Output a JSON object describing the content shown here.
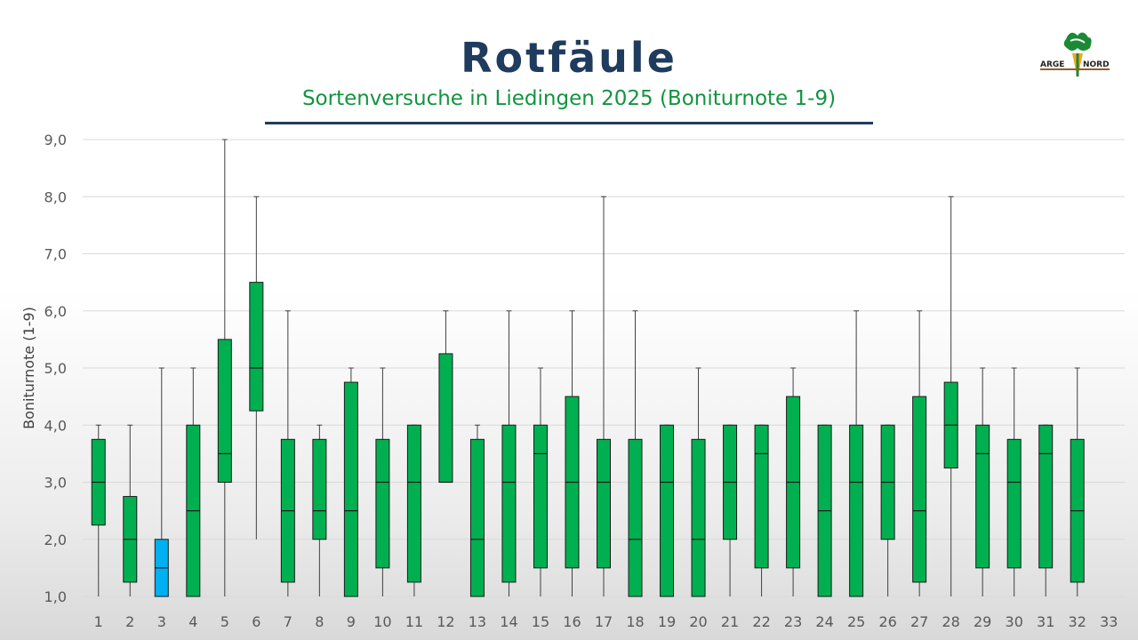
{
  "header": {
    "title": "Rotfäule",
    "subtitle": "Sortenversuche in Liedingen 2025 (Boniturnote 1-9)"
  },
  "logo": {
    "left_text": "ARGE",
    "right_text": "NORD"
  },
  "colors": {
    "box_default": "#00b050",
    "box_highlight": "#00b0f0",
    "title": "#1f3c5e",
    "subtitle": "#12943f"
  },
  "chart_data": {
    "type": "boxplot",
    "title": "Rotfäule",
    "subtitle": "Sortenversuche in Liedingen 2025 (Boniturnote 1-9)",
    "ylabel": "Boniturnote (1-9)",
    "xlabel": "",
    "ylim": [
      1,
      9
    ],
    "yticks": [
      "1,0",
      "2,0",
      "3,0",
      "4,0",
      "5,0",
      "6,0",
      "7,0",
      "8,0",
      "9,0"
    ],
    "grid": true,
    "legend": "none",
    "categories": [
      "1",
      "2",
      "3",
      "4",
      "5",
      "6",
      "7",
      "8",
      "9",
      "10",
      "11",
      "12",
      "13",
      "14",
      "15",
      "16",
      "17",
      "18",
      "19",
      "20",
      "21",
      "22",
      "23",
      "24",
      "25",
      "26",
      "27",
      "28",
      "29",
      "30",
      "31",
      "32",
      "33"
    ],
    "boxes": [
      {
        "min": 1,
        "q1": 2.25,
        "median": 3,
        "q3": 3.75,
        "max": 4
      },
      {
        "min": 1,
        "q1": 1.25,
        "median": 2,
        "q3": 2.75,
        "max": 4
      },
      {
        "min": 1,
        "q1": 1,
        "median": 1.5,
        "q3": 2,
        "max": 5,
        "highlight": true
      },
      {
        "min": 1,
        "q1": 1,
        "median": 2.5,
        "q3": 4,
        "max": 5
      },
      {
        "min": 1,
        "q1": 3,
        "median": 3.5,
        "q3": 5.5,
        "max": 9
      },
      {
        "min": 2,
        "q1": 4.25,
        "median": 5,
        "q3": 6.5,
        "max": 8
      },
      {
        "min": 1,
        "q1": 1.25,
        "median": 2.5,
        "q3": 3.75,
        "max": 6
      },
      {
        "min": 1,
        "q1": 2,
        "median": 2.5,
        "q3": 3.75,
        "max": 4
      },
      {
        "min": 1,
        "q1": 1,
        "median": 2.5,
        "q3": 4.75,
        "max": 5
      },
      {
        "min": 1,
        "q1": 1.5,
        "median": 3,
        "q3": 3.75,
        "max": 5
      },
      {
        "min": 1,
        "q1": 1.25,
        "median": 3,
        "q3": 4,
        "max": 4
      },
      {
        "min": 3,
        "q1": 3,
        "median": 3,
        "q3": 5.25,
        "max": 6
      },
      {
        "min": 1,
        "q1": 1,
        "median": 2,
        "q3": 3.75,
        "max": 4
      },
      {
        "min": 1,
        "q1": 1.25,
        "median": 3,
        "q3": 4,
        "max": 6
      },
      {
        "min": 1,
        "q1": 1.5,
        "median": 3.5,
        "q3": 4,
        "max": 5
      },
      {
        "min": 1,
        "q1": 1.5,
        "median": 3,
        "q3": 4.5,
        "max": 6
      },
      {
        "min": 1,
        "q1": 1.5,
        "median": 3,
        "q3": 3.75,
        "max": 8
      },
      {
        "min": 1,
        "q1": 1,
        "median": 2,
        "q3": 3.75,
        "max": 6
      },
      {
        "min": 1,
        "q1": 1,
        "median": 3,
        "q3": 4,
        "max": 4
      },
      {
        "min": 1,
        "q1": 1,
        "median": 2,
        "q3": 3.75,
        "max": 5
      },
      {
        "min": 1,
        "q1": 2,
        "median": 3,
        "q3": 4,
        "max": 4
      },
      {
        "min": 1,
        "q1": 1.5,
        "median": 3.5,
        "q3": 4,
        "max": 4
      },
      {
        "min": 1,
        "q1": 1.5,
        "median": 3,
        "q3": 4.5,
        "max": 5
      },
      {
        "min": 1,
        "q1": 1,
        "median": 2.5,
        "q3": 4,
        "max": 4
      },
      {
        "min": 1,
        "q1": 1,
        "median": 3,
        "q3": 4,
        "max": 6
      },
      {
        "min": 1,
        "q1": 2,
        "median": 3,
        "q3": 4,
        "max": 4
      },
      {
        "min": 1,
        "q1": 1.25,
        "median": 2.5,
        "q3": 4.5,
        "max": 6
      },
      {
        "min": 1,
        "q1": 3.25,
        "median": 4,
        "q3": 4.75,
        "max": 8
      },
      {
        "min": 1,
        "q1": 1.5,
        "median": 3.5,
        "q3": 4,
        "max": 5
      },
      {
        "min": 1,
        "q1": 1.5,
        "median": 3,
        "q3": 3.75,
        "max": 5
      },
      {
        "min": 1,
        "q1": 1.5,
        "median": 3.5,
        "q3": 4,
        "max": 4
      },
      {
        "min": 1,
        "q1": 1.25,
        "median": 2.5,
        "q3": 3.75,
        "max": 5
      },
      null
    ]
  }
}
